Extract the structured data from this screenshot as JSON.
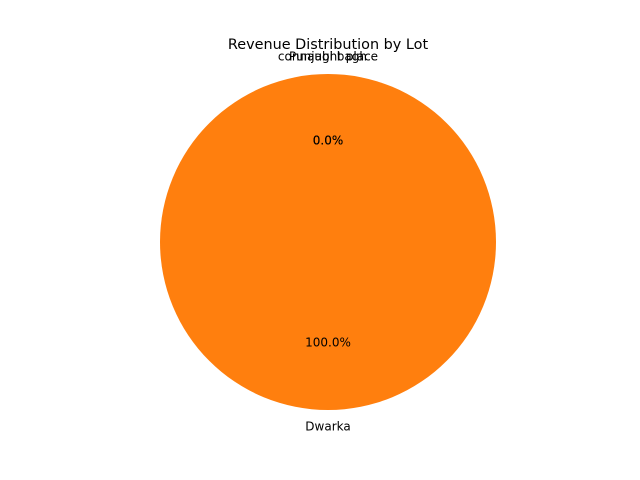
{
  "chart_data": {
    "type": "pie",
    "title": "Revenue Distribution by Lot",
    "categories": [
      "connaught place",
      "Punjabi bagh",
      "Dwarka"
    ],
    "values": [
      0.0,
      0.0,
      100.0
    ],
    "percent_labels": [
      "0.0%",
      "0.0%",
      "100.0%"
    ],
    "colors": [
      "#1f77b4",
      "#2ca02c",
      "#ff7f0e"
    ],
    "start_angle_deg": 90,
    "direction": "counterclockwise",
    "legend": "none"
  }
}
